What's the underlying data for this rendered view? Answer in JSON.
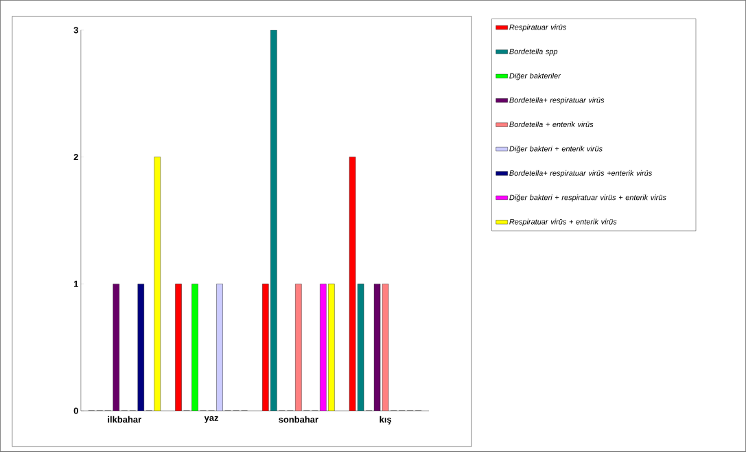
{
  "chart_data": {
    "type": "bar",
    "categories": [
      "ilkbahar",
      "yaz",
      "sonbahar",
      "kış"
    ],
    "series": [
      {
        "name": "Respiratuar virüs",
        "color": "#ff0000",
        "values": [
          0,
          1,
          1,
          2
        ]
      },
      {
        "name": "Bordetella spp",
        "color": "#008080",
        "values": [
          0,
          0,
          3,
          1
        ]
      },
      {
        "name": "Diğer bakteriler",
        "color": "#00ff00",
        "values": [
          0,
          1,
          0,
          0
        ]
      },
      {
        "name": "Bordetella+ respiratuar virüs",
        "color": "#660066",
        "values": [
          1,
          0,
          0,
          1
        ]
      },
      {
        "name": "Bordetella + enterik virüs",
        "color": "#ff8080",
        "values": [
          0,
          0,
          1,
          1
        ]
      },
      {
        "name": "Diğer bakteri + enterik virüs",
        "color": "#ccccff",
        "values": [
          0,
          1,
          0,
          0
        ]
      },
      {
        "name": "Bordetella+ respiratuar virüs +enterik virüs",
        "color": "#000080",
        "values": [
          1,
          0,
          0,
          0
        ]
      },
      {
        "name": "Diğer bakteri + respiratuar virüs + enterik virüs",
        "color": "#ff00ff",
        "values": [
          0,
          0,
          1,
          0
        ]
      },
      {
        "name": "Respiratuar virüs + enterik virüs",
        "color": "#ffff00",
        "values": [
          2,
          0,
          1,
          0
        ]
      }
    ],
    "ylim": [
      0,
      3
    ],
    "yticks": [
      0,
      1,
      2,
      3
    ],
    "grid": false,
    "legend": "right"
  }
}
